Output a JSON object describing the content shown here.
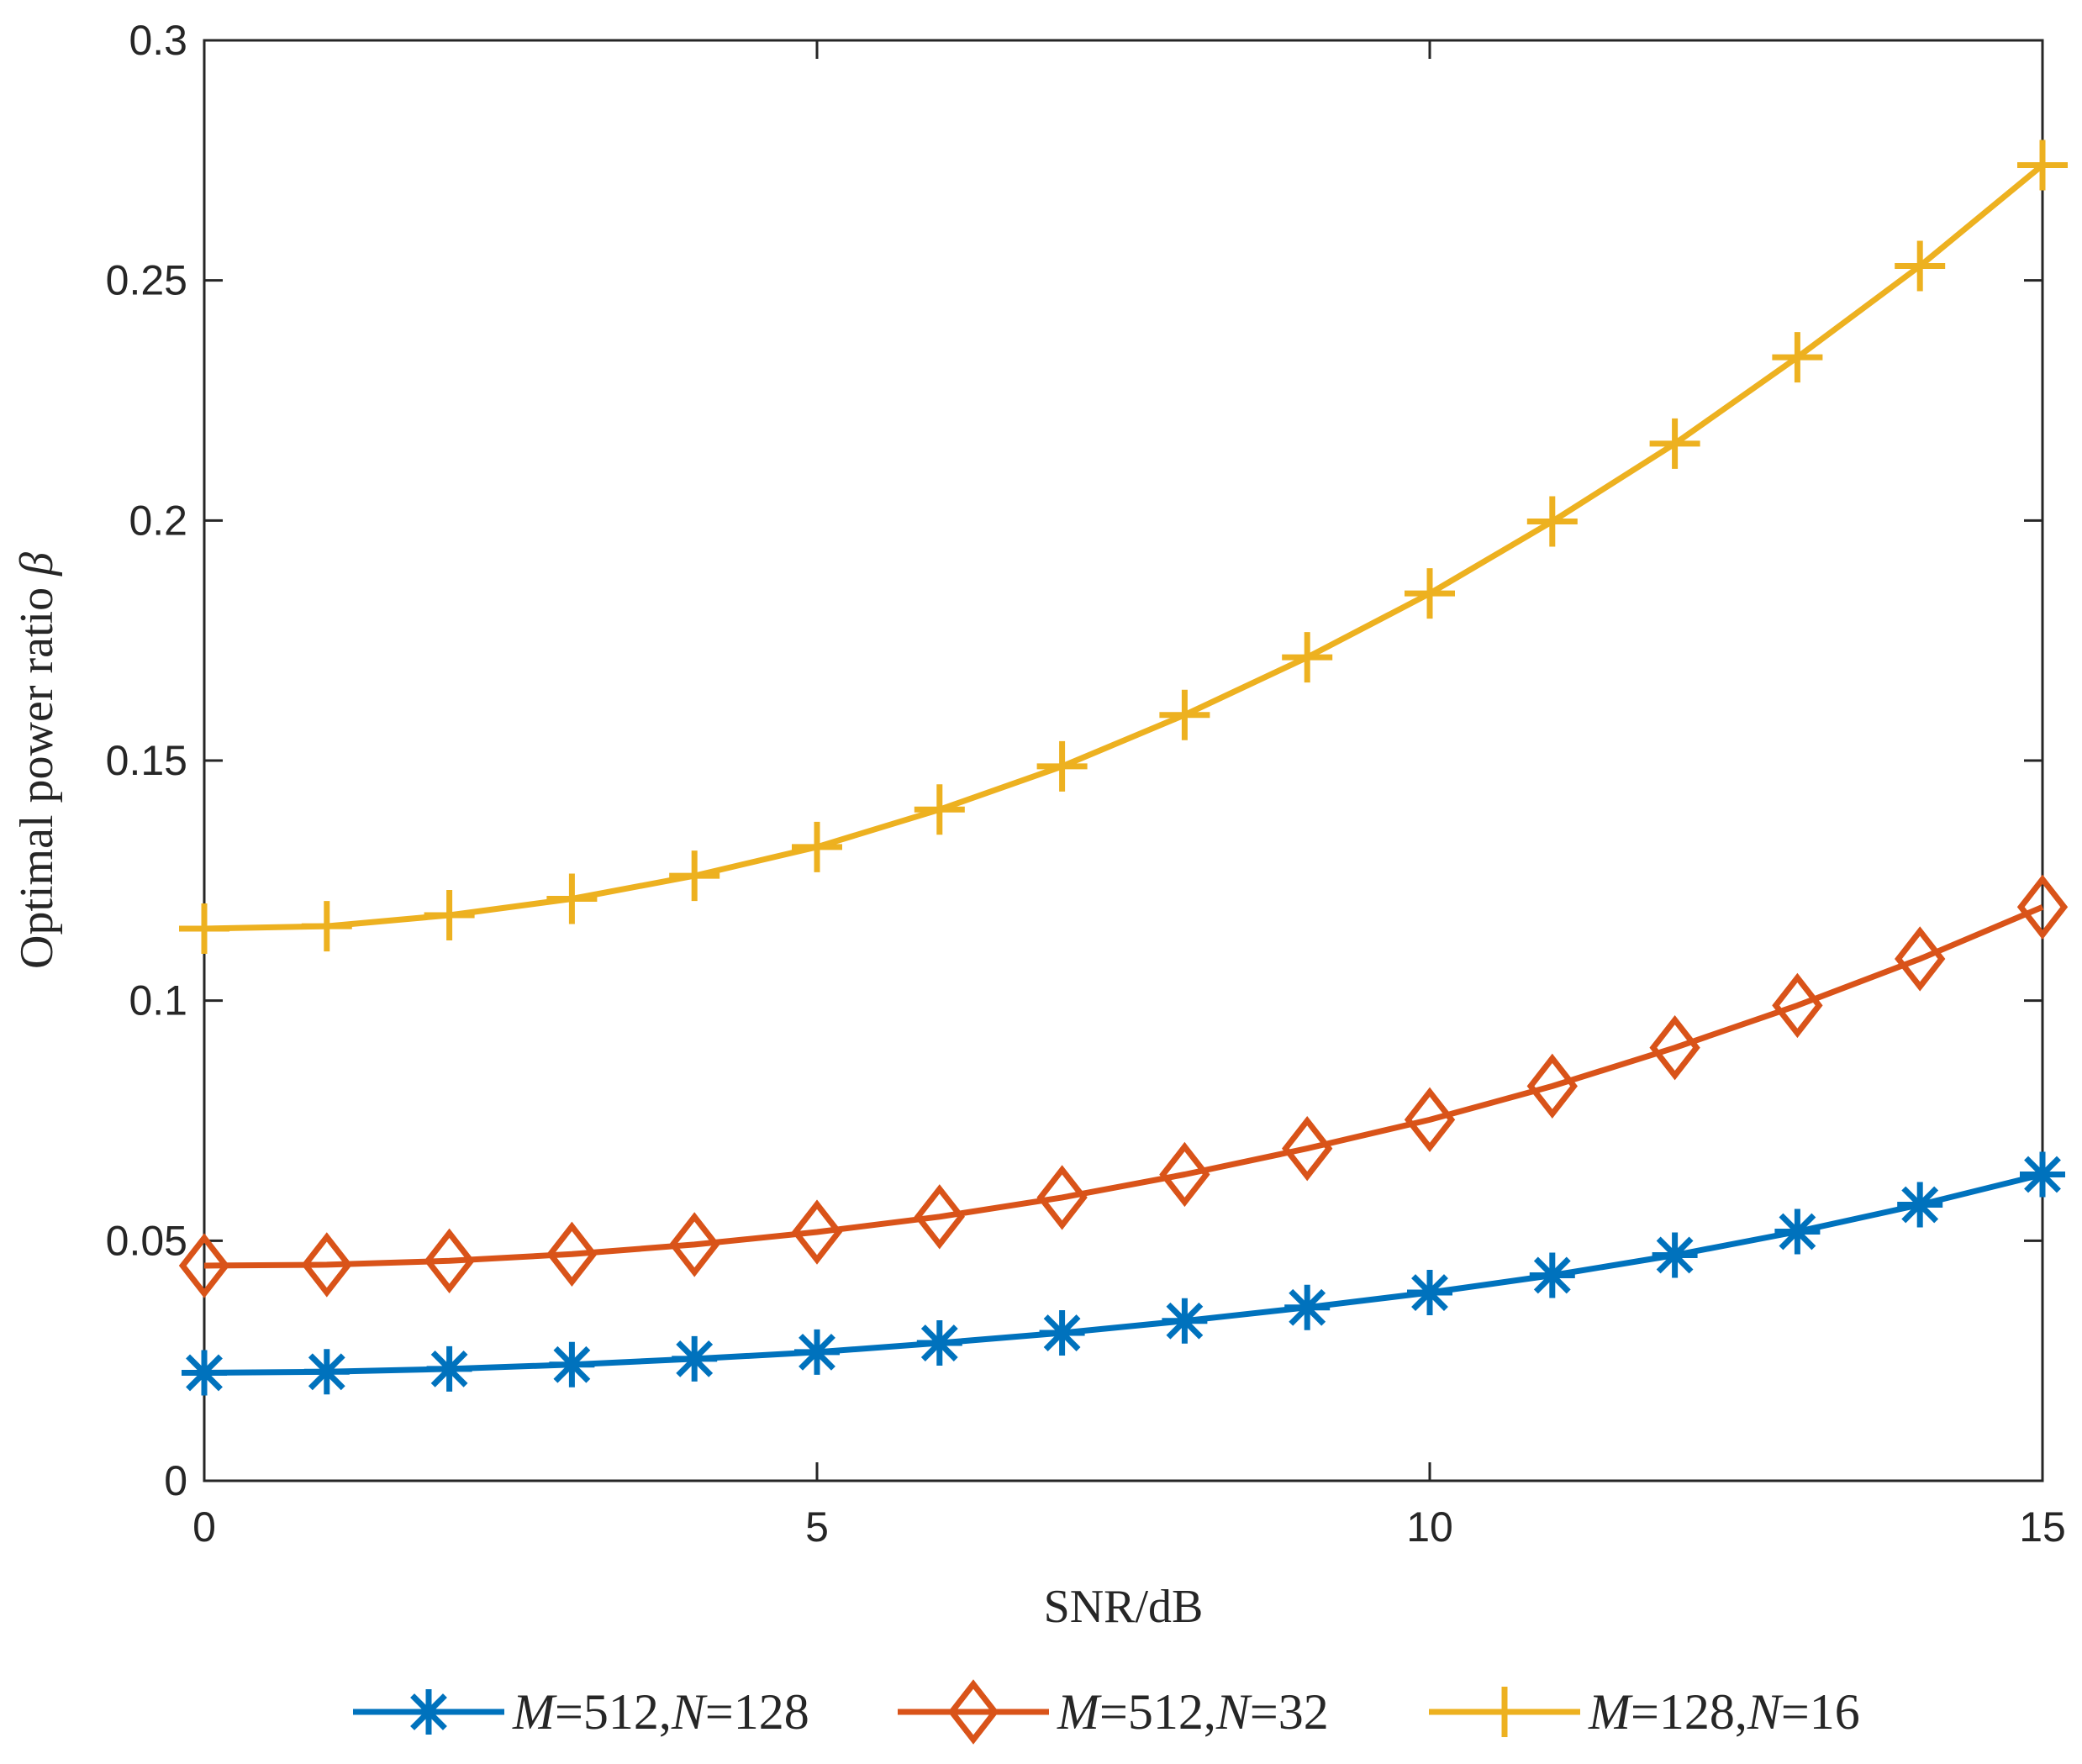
{
  "chart_data": {
    "type": "line",
    "title": "",
    "xlabel": "SNR/dB",
    "ylabel": "Optimal power ratio",
    "ylabel_symbol": "β",
    "xlim": [
      0,
      15
    ],
    "ylim": [
      0,
      0.3
    ],
    "xticks": [
      0,
      5,
      10,
      15
    ],
    "xtick_labels": [
      "0",
      "5",
      "10",
      "15"
    ],
    "yticks": [
      0,
      0.05,
      0.1,
      0.15,
      0.2,
      0.25,
      0.3
    ],
    "ytick_labels": [
      "0",
      "0.05",
      "0.1",
      "0.15",
      "0.2",
      "0.25",
      "0.3"
    ],
    "grid": false,
    "legend_position": "bottom",
    "x": [
      0,
      1,
      2,
      3,
      4,
      5,
      6,
      7,
      8,
      9,
      10,
      11,
      12,
      13,
      14,
      15
    ],
    "series": [
      {
        "name": "M=512,N=128",
        "label_parts": [
          {
            "text": "M",
            "italic": true
          },
          {
            "text": "=512,",
            "italic": false
          },
          {
            "text": "N",
            "italic": true
          },
          {
            "text": "=128",
            "italic": false
          }
        ],
        "color": "#0072BD",
        "marker": "asterisk",
        "values": [
          0.0225,
          0.0227,
          0.0233,
          0.0242,
          0.0254,
          0.0268,
          0.0287,
          0.0308,
          0.0333,
          0.0361,
          0.0392,
          0.0428,
          0.047,
          0.0519,
          0.0575,
          0.0638
        ]
      },
      {
        "name": "M=512,N=32",
        "label_parts": [
          {
            "text": "M",
            "italic": true
          },
          {
            "text": "=512,",
            "italic": false
          },
          {
            "text": "N",
            "italic": true
          },
          {
            "text": "=32",
            "italic": false
          }
        ],
        "color": "#D95319",
        "marker": "diamond",
        "values": [
          0.0448,
          0.045,
          0.0458,
          0.0472,
          0.0492,
          0.0518,
          0.055,
          0.059,
          0.0638,
          0.0692,
          0.0752,
          0.0822,
          0.0902,
          0.099,
          0.1087,
          0.1195
        ]
      },
      {
        "name": "M=128,N=16",
        "label_parts": [
          {
            "text": "M",
            "italic": true
          },
          {
            "text": "=128,",
            "italic": false
          },
          {
            "text": "N",
            "italic": true
          },
          {
            "text": "=16",
            "italic": false
          }
        ],
        "color": "#EDB120",
        "marker": "plus",
        "values": [
          0.115,
          0.1155,
          0.1178,
          0.1212,
          0.126,
          0.132,
          0.1398,
          0.1488,
          0.1595,
          0.1715,
          0.1848,
          0.1998,
          0.216,
          0.234,
          0.253,
          0.274
        ]
      }
    ]
  }
}
